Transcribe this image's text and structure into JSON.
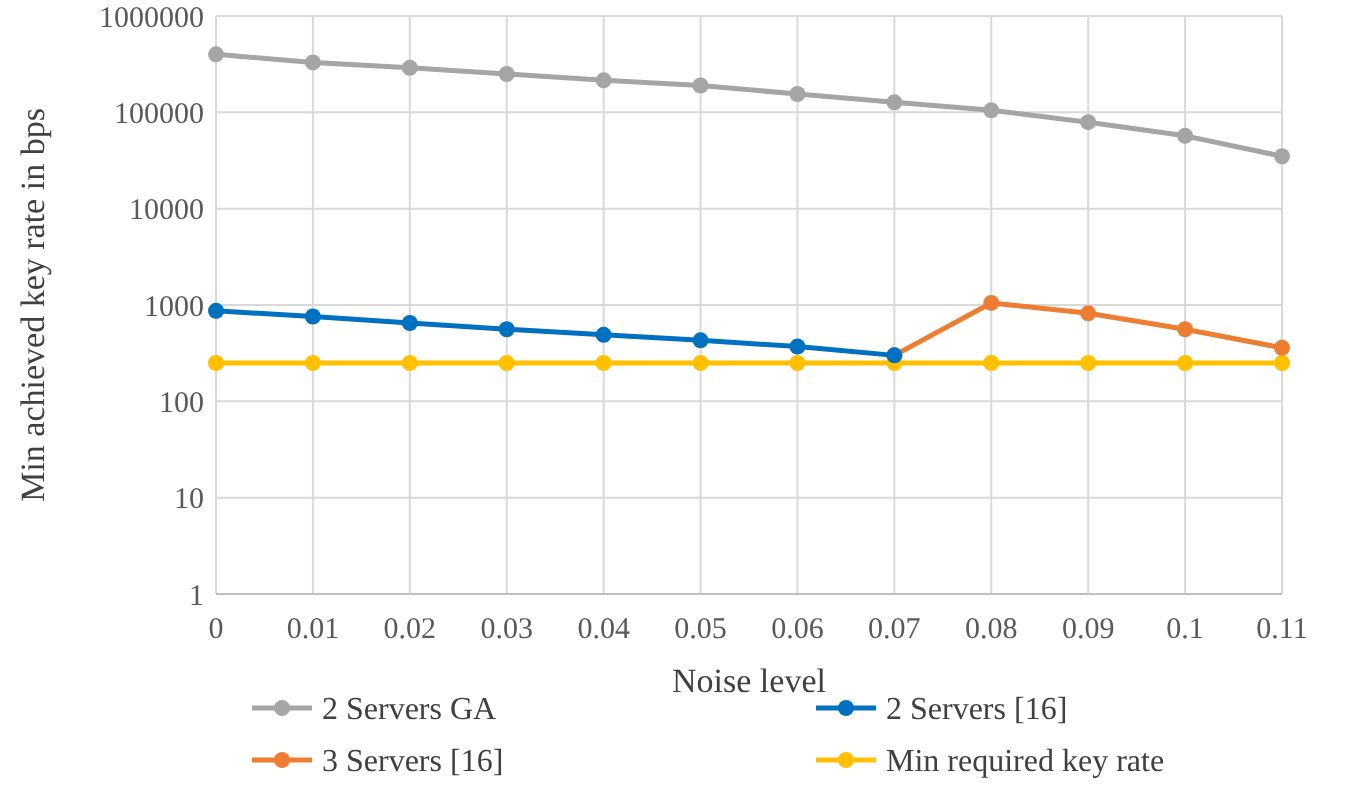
{
  "chart_data": {
    "type": "line",
    "xlabel": "Noise level",
    "ylabel": "Min achieved key rate in bps",
    "log": "y",
    "grid": true,
    "legend": "bottom",
    "marker": "circle",
    "line_style": "solid",
    "x": [
      0,
      0.01,
      0.02,
      0.03,
      0.04,
      0.05,
      0.06,
      0.07,
      0.08,
      0.09,
      0.1,
      0.11
    ],
    "xlim": [
      0,
      0.11
    ],
    "xticks": [
      0,
      0.01,
      0.02,
      0.03,
      0.04,
      0.05,
      0.06,
      0.07,
      0.08,
      0.09,
      0.1,
      0.11
    ],
    "ylim": [
      1,
      1000000
    ],
    "yticks": [
      1,
      10,
      100,
      1000,
      10000,
      100000,
      1000000
    ],
    "series": [
      {
        "name": "2 Servers GA",
        "color": "#a5a5a5",
        "values": [
          400000,
          330000,
          290000,
          250000,
          215000,
          190000,
          155000,
          127000,
          105000,
          79000,
          57000,
          35000
        ]
      },
      {
        "name": "2 Servers [16]",
        "color": "#0070c0",
        "values": [
          870,
          760,
          650,
          560,
          490,
          430,
          370,
          300,
          null,
          null,
          null,
          null
        ]
      },
      {
        "name": "3 Servers [16]",
        "color": "#ed7d31",
        "values": [
          null,
          null,
          null,
          null,
          null,
          null,
          null,
          300,
          1050,
          820,
          560,
          360
        ]
      },
      {
        "name": "Min required key rate",
        "color": "#ffc000",
        "values": [
          250,
          250,
          250,
          250,
          250,
          250,
          250,
          250,
          250,
          250,
          250,
          250
        ]
      }
    ]
  }
}
